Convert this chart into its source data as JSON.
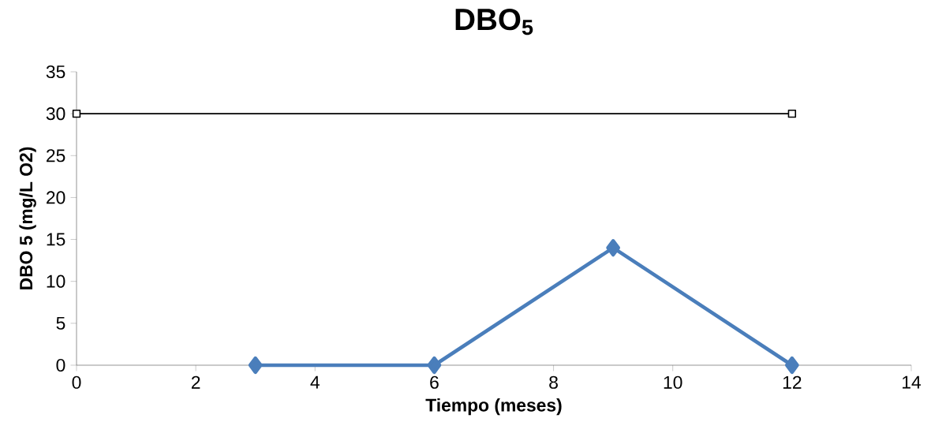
{
  "chart_data": {
    "type": "line",
    "title": "DBO$_{5}$",
    "xlabel": "Tiempo (meses)",
    "ylabel": "DBO 5 (mg/L O2)",
    "xlim": [
      0,
      14
    ],
    "xticks": [
      0,
      2,
      4,
      6,
      8,
      10,
      12,
      14
    ],
    "ylim": [
      0,
      35
    ],
    "yticks": [
      0,
      5,
      10,
      15,
      20,
      25,
      30,
      35
    ],
    "series": [
      {
        "x": [
          3,
          6,
          9,
          12
        ],
        "values": [
          0,
          0,
          14,
          0
        ],
        "color": "#4a7ebb",
        "marker": "diamond",
        "line_style": "solid"
      },
      {
        "x": [
          0,
          12
        ],
        "values": [
          30,
          30
        ],
        "color": "#000000",
        "marker": "square",
        "line_style": "solid"
      }
    ]
  }
}
